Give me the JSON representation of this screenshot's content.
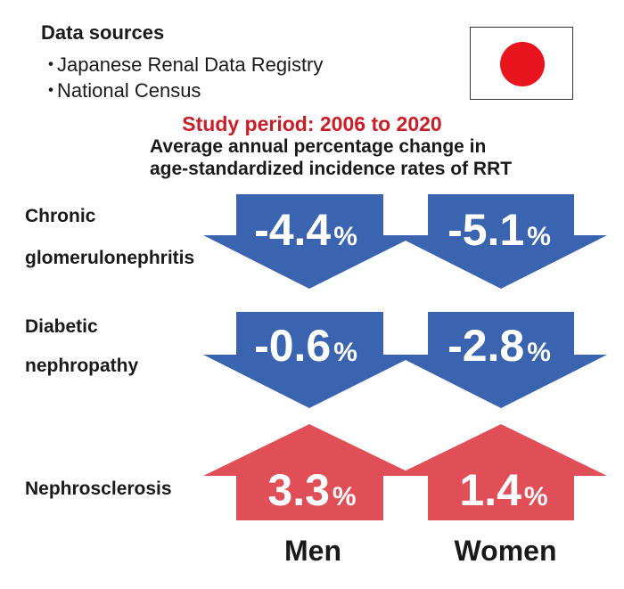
{
  "data_sources": {
    "title": "Data sources",
    "items": [
      "Japanese Renal Data Registry",
      "National Census"
    ],
    "bullet": "・"
  },
  "flag_icon": "japan-flag-icon",
  "study_period": "Study period: 2006 to 2020",
  "subtitle_line1": "Average annual percentage change in",
  "subtitle_line2": "age-standardized incidence rates of RRT",
  "columns": [
    "Men",
    "Women"
  ],
  "rows": [
    {
      "label_line1": "Chronic",
      "label_line2": "glomerulonephritis",
      "values": [
        "-4.4",
        "-5.1"
      ],
      "direction": "down"
    },
    {
      "label_line1": "Diabetic",
      "label_line2": "nephropathy",
      "values": [
        "-0.6",
        "-2.8"
      ],
      "direction": "down"
    },
    {
      "label_line1": "Nephrosclerosis",
      "label_line2": "",
      "values": [
        "3.3",
        "1.4"
      ],
      "direction": "up"
    }
  ],
  "unit": "%",
  "colors": {
    "decrease": "#3b64b0",
    "increase": "#e04f57",
    "period_text": "#c81e28",
    "flag_sun": "#e8141e"
  }
}
